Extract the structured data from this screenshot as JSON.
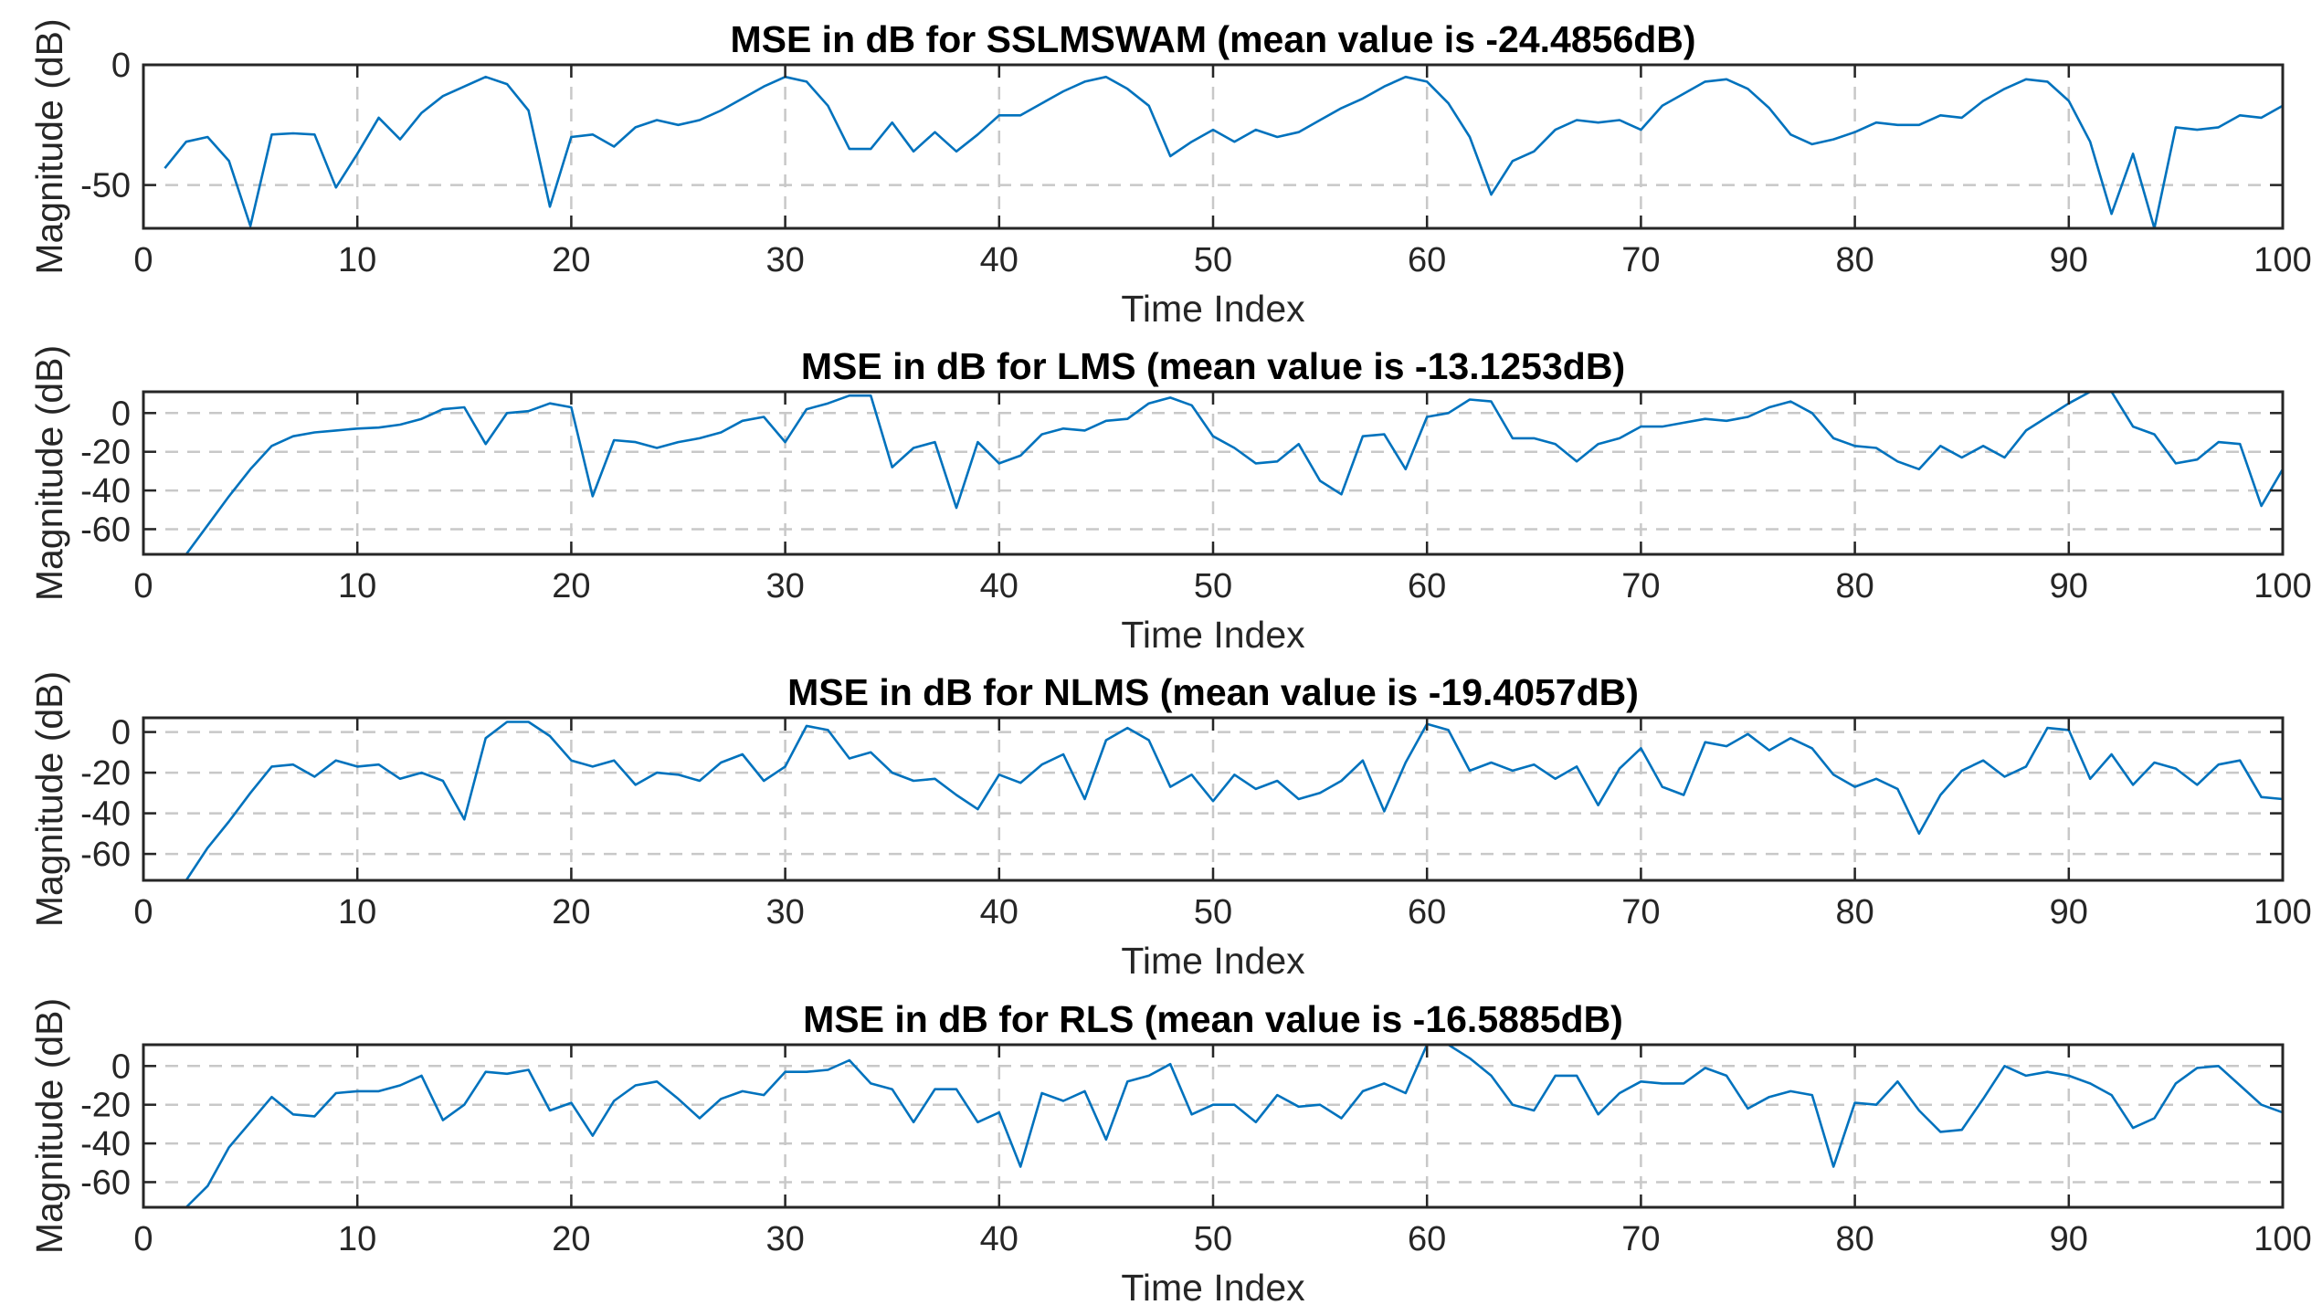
{
  "chart_data": [
    {
      "type": "line",
      "title": "MSE in dB for SSLMSWAM (mean value is -24.4856dB)",
      "xlabel": "Time Index",
      "ylabel": "Magnitude (dB)",
      "xlim": [
        0,
        100
      ],
      "ylim": [
        -68,
        0
      ],
      "xticks": [
        0,
        10,
        20,
        30,
        40,
        50,
        60,
        70,
        80,
        90,
        100
      ],
      "yticks": [
        -50,
        0
      ],
      "grid": true,
      "color": "#0072BD",
      "series": [
        {
          "x": [
            1,
            2,
            3,
            4,
            5,
            6,
            7,
            8,
            9,
            10,
            11,
            12,
            13,
            14,
            15,
            16,
            17,
            18,
            19,
            20,
            21,
            22,
            23,
            24,
            25,
            26,
            27,
            28,
            29,
            30,
            31,
            32,
            33,
            34,
            35,
            36,
            37,
            38,
            39,
            40,
            41,
            42,
            43,
            44,
            45,
            46,
            47,
            48,
            49,
            50,
            51,
            52,
            53,
            54,
            55,
            56,
            57,
            58,
            59,
            60,
            61,
            62,
            63,
            64,
            65,
            66,
            67,
            68,
            69,
            70,
            71,
            72,
            73,
            74,
            75,
            76,
            77,
            78,
            79,
            80,
            81,
            82,
            83,
            84,
            85,
            86,
            87,
            88,
            89,
            90,
            91,
            92,
            93,
            94,
            95,
            96,
            97,
            98,
            99,
            100
          ],
          "values": [
            -43,
            -32,
            -30,
            -40,
            -67,
            -29,
            -28.5,
            -29,
            -51,
            -37,
            -22,
            -31,
            -20,
            -13,
            -9,
            -5,
            -8,
            -19,
            -59,
            -30,
            -29,
            -34,
            -26,
            -23,
            -25,
            -23,
            -19,
            -14,
            -9,
            -5,
            -7,
            -17,
            -35,
            -35,
            -24,
            -36,
            -28,
            -36,
            -29,
            -21,
            -21,
            -16,
            -11,
            -7,
            -5,
            -10,
            -17,
            -38,
            -32,
            -27,
            -32,
            -27,
            -30,
            -28,
            -23,
            -18,
            -14,
            -9,
            -5,
            -7,
            -16,
            -30,
            -54,
            -40,
            -36,
            -27,
            -23,
            -24,
            -23,
            -27,
            -17,
            -12,
            -7,
            -6,
            -10,
            -18,
            -29,
            -33,
            -31,
            -28,
            -24,
            -25,
            -25,
            -21,
            -22,
            -15,
            -10,
            -6,
            -7,
            -15,
            -32,
            -62,
            -37,
            -68,
            -26,
            -27,
            -26,
            -21,
            -22,
            -17
          ]
        }
      ]
    },
    {
      "type": "line",
      "title": "MSE in dB for LMS (mean value is -13.1253dB)",
      "xlabel": "Time Index",
      "ylabel": "Magnitude (dB)",
      "xlim": [
        0,
        100
      ],
      "ylim": [
        -73,
        11
      ],
      "xticks": [
        0,
        10,
        20,
        30,
        40,
        50,
        60,
        70,
        80,
        90,
        100
      ],
      "yticks": [
        -60,
        -40,
        -20,
        0
      ],
      "grid": true,
      "color": "#0072BD",
      "series": [
        {
          "x": [
            1,
            2,
            3,
            4,
            5,
            6,
            7,
            8,
            9,
            10,
            11,
            12,
            13,
            14,
            15,
            16,
            17,
            18,
            19,
            20,
            21,
            22,
            23,
            24,
            25,
            26,
            27,
            28,
            29,
            30,
            31,
            32,
            33,
            34,
            35,
            36,
            37,
            38,
            39,
            40,
            41,
            42,
            43,
            44,
            45,
            46,
            47,
            48,
            49,
            50,
            51,
            52,
            53,
            54,
            55,
            56,
            57,
            58,
            59,
            60,
            61,
            62,
            63,
            64,
            65,
            66,
            67,
            68,
            69,
            70,
            71,
            72,
            73,
            74,
            75,
            76,
            77,
            78,
            79,
            80,
            81,
            82,
            83,
            84,
            85,
            86,
            87,
            88,
            89,
            90,
            91,
            92,
            93,
            94,
            95,
            96,
            97,
            98,
            99,
            100
          ],
          "values": [
            -95,
            -73,
            -58,
            -43,
            -29,
            -17,
            -12,
            -10,
            -9,
            -8,
            -7.5,
            -6,
            -3,
            2,
            3,
            -16,
            0,
            1,
            5,
            3,
            -43,
            -14,
            -15,
            -18,
            -15,
            -13,
            -10,
            -4,
            -2,
            -15,
            2,
            5,
            9,
            9,
            -28,
            -18,
            -15,
            -49,
            -15,
            -26,
            -22,
            -11,
            -8,
            -9,
            -4,
            -3,
            5,
            8,
            4,
            -12,
            -18,
            -26,
            -25,
            -16,
            -35,
            -42,
            -12,
            -11,
            -29,
            -2,
            0,
            7,
            6,
            -13,
            -13,
            -16,
            -25,
            -16,
            -13,
            -7,
            -7,
            -5,
            -3,
            -4,
            -2,
            3,
            6,
            0,
            -13,
            -17,
            -18,
            -25,
            -29,
            -17,
            -23,
            -17,
            -23,
            -9,
            -2,
            5,
            11,
            11,
            -7,
            -11,
            -26,
            -24,
            -15,
            -16,
            -48,
            -29
          ]
        }
      ]
    },
    {
      "type": "line",
      "title": "MSE in dB for NLMS (mean value is -19.4057dB)",
      "xlabel": "Time Index",
      "ylabel": "Magnitude (dB)",
      "xlim": [
        0,
        100
      ],
      "ylim": [
        -73,
        7
      ],
      "xticks": [
        0,
        10,
        20,
        30,
        40,
        50,
        60,
        70,
        80,
        90,
        100
      ],
      "yticks": [
        -60,
        -40,
        -20,
        0
      ],
      "grid": true,
      "color": "#0072BD",
      "series": [
        {
          "x": [
            1,
            2,
            3,
            4,
            5,
            6,
            7,
            8,
            9,
            10,
            11,
            12,
            13,
            14,
            15,
            16,
            17,
            18,
            19,
            20,
            21,
            22,
            23,
            24,
            25,
            26,
            27,
            28,
            29,
            30,
            31,
            32,
            33,
            34,
            35,
            36,
            37,
            38,
            39,
            40,
            41,
            42,
            43,
            44,
            45,
            46,
            47,
            48,
            49,
            50,
            51,
            52,
            53,
            54,
            55,
            56,
            57,
            58,
            59,
            60,
            61,
            62,
            63,
            64,
            65,
            66,
            67,
            68,
            69,
            70,
            71,
            72,
            73,
            74,
            75,
            76,
            77,
            78,
            79,
            80,
            81,
            82,
            83,
            84,
            85,
            86,
            87,
            88,
            89,
            90,
            91,
            92,
            93,
            94,
            95,
            96,
            97,
            98,
            99,
            100
          ],
          "values": [
            -95,
            -73,
            -57,
            -44,
            -30,
            -17,
            -16,
            -22,
            -14,
            -17,
            -16,
            -23,
            -20,
            -24,
            -43,
            -3,
            5,
            5,
            -2,
            -14,
            -17,
            -14,
            -26,
            -20,
            -21,
            -24,
            -15,
            -11,
            -24,
            -17,
            3,
            1,
            -13,
            -10,
            -20,
            -24,
            -23,
            -31,
            -38,
            -21,
            -25,
            -16,
            -11,
            -33,
            -4,
            2,
            -4,
            -27,
            -21,
            -34,
            -21,
            -28,
            -24,
            -33,
            -30,
            -24,
            -14,
            -39,
            -15,
            4,
            1,
            -19,
            -15,
            -19,
            -16,
            -23,
            -17,
            -36,
            -18,
            -8,
            -27,
            -31,
            -5,
            -7,
            -1,
            -9,
            -3,
            -8,
            -21,
            -27,
            -23,
            -28,
            -50,
            -31,
            -19,
            -14,
            -22,
            -17,
            2,
            1,
            -23,
            -11,
            -26,
            -15,
            -18,
            -26,
            -16,
            -14,
            -32,
            -33
          ]
        }
      ]
    },
    {
      "type": "line",
      "title": "MSE in dB for RLS (mean value is -16.5885dB)",
      "xlabel": "Time Index",
      "ylabel": "Magnitude (dB)",
      "xlim": [
        0,
        100
      ],
      "ylim": [
        -73,
        11
      ],
      "xticks": [
        0,
        10,
        20,
        30,
        40,
        50,
        60,
        70,
        80,
        90,
        100
      ],
      "yticks": [
        -60,
        -40,
        -20,
        0
      ],
      "grid": true,
      "color": "#0072BD",
      "series": [
        {
          "x": [
            1,
            2,
            3,
            4,
            5,
            6,
            7,
            8,
            9,
            10,
            11,
            12,
            13,
            14,
            15,
            16,
            17,
            18,
            19,
            20,
            21,
            22,
            23,
            24,
            25,
            26,
            27,
            28,
            29,
            30,
            31,
            32,
            33,
            34,
            35,
            36,
            37,
            38,
            39,
            40,
            41,
            42,
            43,
            44,
            45,
            46,
            47,
            48,
            49,
            50,
            51,
            52,
            53,
            54,
            55,
            56,
            57,
            58,
            59,
            60,
            61,
            62,
            63,
            64,
            65,
            66,
            67,
            68,
            69,
            70,
            71,
            72,
            73,
            74,
            75,
            76,
            77,
            78,
            79,
            80,
            81,
            82,
            83,
            84,
            85,
            86,
            87,
            88,
            89,
            90,
            91,
            92,
            93,
            94,
            95,
            96,
            97,
            98,
            99,
            100
          ],
          "values": [
            -95,
            -73,
            -62,
            -42,
            -29,
            -16,
            -25,
            -26,
            -14,
            -13,
            -13,
            -10,
            -5,
            -28,
            -20,
            -3,
            -4,
            -2,
            -23,
            -19,
            -36,
            -18,
            -10,
            -8,
            -17,
            -27,
            -17,
            -13,
            -15,
            -3,
            -3,
            -2,
            3,
            -9,
            -12,
            -29,
            -12,
            -12,
            -29,
            -24,
            -52,
            -14,
            -18,
            -13,
            -38,
            -8,
            -5,
            1,
            -25,
            -20,
            -20,
            -29,
            -15,
            -21,
            -20,
            -27,
            -13,
            -9,
            -14,
            11,
            11,
            4,
            -5,
            -20,
            -23,
            -5,
            -5,
            -25,
            -14,
            -8,
            -9,
            -9,
            -1,
            -5,
            -22,
            -16,
            -13,
            -15,
            -52,
            -19,
            -20,
            -8,
            -23,
            -34,
            -33,
            -17,
            0,
            -5,
            -3,
            -5,
            -9,
            -15,
            -32,
            -27,
            -9,
            -1,
            0,
            -10,
            -20,
            -24
          ]
        }
      ]
    }
  ]
}
